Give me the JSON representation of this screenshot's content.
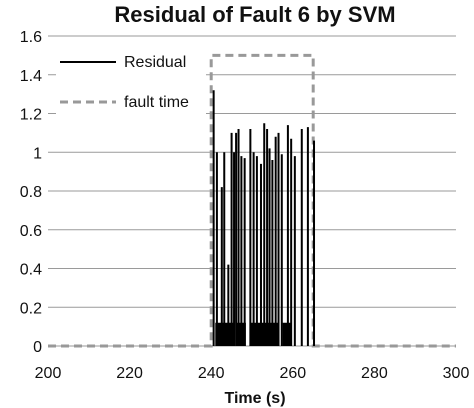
{
  "chart_data": {
    "type": "line",
    "title": "Residual of Fault 6 by SVM",
    "xlabel": "Time (s)",
    "ylabel": "",
    "xlim": [
      200,
      300
    ],
    "ylim": [
      0,
      1.6
    ],
    "x_ticks": [
      "200",
      "220",
      "240",
      "260",
      "280",
      "300"
    ],
    "y_ticks": [
      "0",
      "0.2",
      "0.4",
      "0.6",
      "0.8",
      "1",
      "1.2",
      "1.4",
      "1.6"
    ],
    "grid": "horizontal",
    "legend_position": "top-left",
    "series": [
      {
        "name": "Residual",
        "style": "solid",
        "color": "#000000",
        "x": [
          240.6,
          241.4,
          242.6,
          243.2,
          244.2,
          245.0,
          245.6,
          246.1,
          246.7,
          247.4,
          248.2,
          249.6,
          250.4,
          251.2,
          252.2,
          253.0,
          253.7,
          254.3,
          255.0,
          255.8,
          256.5,
          257.3,
          258.8,
          259.6,
          260.5,
          262.2,
          263.7,
          265.2
        ],
        "values": [
          1.32,
          1.0,
          0.82,
          1.0,
          0.42,
          1.1,
          1.0,
          1.1,
          1.12,
          0.98,
          0.97,
          1.12,
          1.0,
          0.98,
          0.94,
          1.15,
          1.12,
          1.02,
          0.96,
          1.08,
          1.1,
          0.99,
          1.14,
          1.07,
          0.98,
          1.12,
          1.13,
          1.06
        ]
      },
      {
        "name": "fault time",
        "style": "dashed",
        "color": "#999999",
        "x": [
          200,
          240,
          240,
          265,
          265,
          300
        ],
        "values": [
          0,
          0,
          1.5,
          1.5,
          0,
          0
        ]
      }
    ]
  }
}
